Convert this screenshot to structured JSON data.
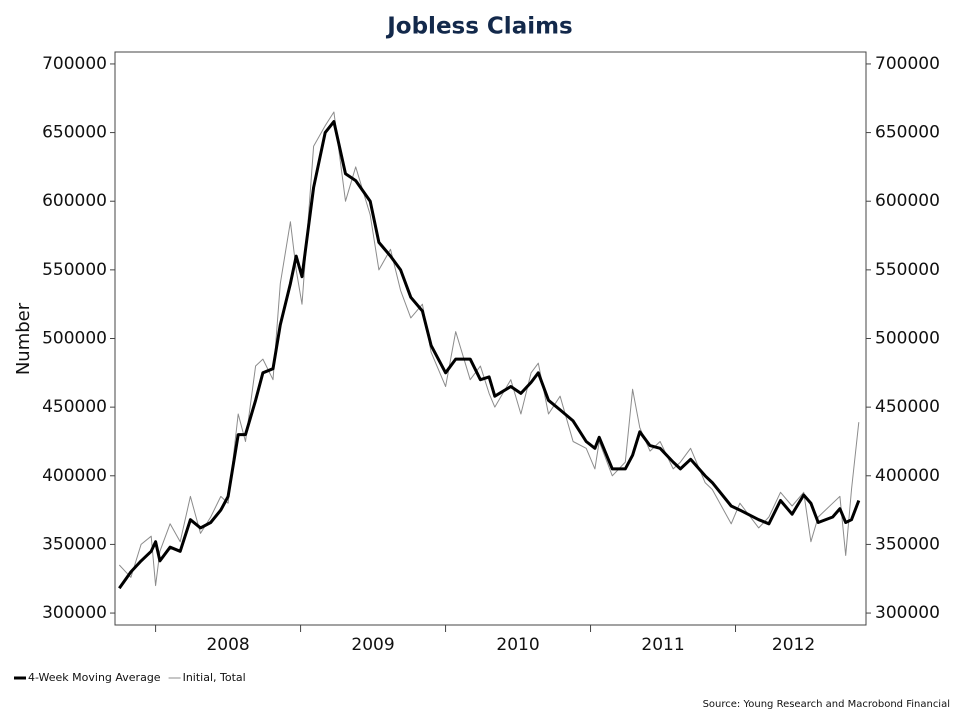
{
  "chart_data": {
    "type": "line",
    "title": "Jobless Claims",
    "ylabel": "Number",
    "source": "Source: Young Research and Macrobond Financial",
    "x": [
      2007.75,
      2007.83,
      2007.9,
      2007.97,
      2008.0,
      2008.03,
      2008.1,
      2008.17,
      2008.24,
      2008.31,
      2008.38,
      2008.45,
      2008.5,
      2008.57,
      2008.62,
      2008.69,
      2008.74,
      2008.81,
      2008.86,
      2008.93,
      2008.97,
      2009.01,
      2009.09,
      2009.17,
      2009.23,
      2009.31,
      2009.38,
      2009.48,
      2009.54,
      2009.62,
      2009.69,
      2009.76,
      2009.84,
      2009.9,
      2010.0,
      2010.07,
      2010.17,
      2010.24,
      2010.3,
      2010.34,
      2010.45,
      2010.52,
      2010.59,
      2010.64,
      2010.71,
      2010.79,
      2010.88,
      2010.97,
      2011.03,
      2011.06,
      2011.15,
      2011.24,
      2011.29,
      2011.34,
      2011.41,
      2011.48,
      2011.57,
      2011.62,
      2011.69,
      2011.79,
      2011.84,
      2011.97,
      2012.03,
      2012.16,
      2012.23,
      2012.31,
      2012.39,
      2012.47,
      2012.52,
      2012.57,
      2012.67,
      2012.72,
      2012.76,
      2012.8,
      2012.85
    ],
    "series": [
      {
        "name": "Initial, Total",
        "color": "#8c8c8c",
        "width": 1,
        "values": [
          335000,
          326000,
          350000,
          356000,
          320000,
          345000,
          365000,
          352000,
          385000,
          358000,
          370000,
          385000,
          380000,
          445000,
          425000,
          480000,
          485000,
          470000,
          540000,
          585000,
          550000,
          525000,
          640000,
          655000,
          665000,
          600000,
          625000,
          590000,
          550000,
          565000,
          535000,
          515000,
          525000,
          490000,
          465000,
          505000,
          470000,
          480000,
          460000,
          450000,
          470000,
          445000,
          475000,
          482000,
          445000,
          458000,
          425000,
          420000,
          405000,
          425000,
          400000,
          410000,
          463000,
          435000,
          418000,
          425000,
          405000,
          410000,
          420000,
          395000,
          390000,
          365000,
          380000,
          362000,
          370000,
          388000,
          378000,
          388000,
          352000,
          370000,
          380000,
          385000,
          342000,
          390000,
          439000
        ]
      },
      {
        "name": "4-Week Moving Average",
        "color": "#000000",
        "width": 3,
        "values": [
          318000,
          330000,
          338000,
          345000,
          352000,
          338000,
          348000,
          345000,
          368000,
          362000,
          366000,
          375000,
          385000,
          430000,
          430000,
          455000,
          475000,
          478000,
          510000,
          540000,
          560000,
          545000,
          610000,
          650000,
          658000,
          620000,
          615000,
          600000,
          570000,
          560000,
          550000,
          530000,
          520000,
          495000,
          475000,
          485000,
          485000,
          470000,
          472000,
          458000,
          465000,
          460000,
          468000,
          475000,
          455000,
          448000,
          440000,
          425000,
          420000,
          428000,
          405000,
          405000,
          415000,
          432000,
          422000,
          420000,
          410000,
          405000,
          412000,
          400000,
          395000,
          378000,
          375000,
          368000,
          365000,
          382000,
          372000,
          386000,
          380000,
          366000,
          370000,
          376000,
          366000,
          368000,
          382000
        ]
      }
    ],
    "legend_order": [
      1,
      0
    ],
    "xlim": [
      2007.72,
      2012.9
    ],
    "xticks": [
      2008,
      2009,
      2010,
      2011,
      2012
    ],
    "xlabels": [
      {
        "value": 2008.5,
        "label": "2008"
      },
      {
        "value": 2009.5,
        "label": "2009"
      },
      {
        "value": 2010.5,
        "label": "2010"
      },
      {
        "value": 2011.5,
        "label": "2011"
      },
      {
        "value": 2012.4,
        "label": "2012"
      }
    ],
    "ylim": [
      291300,
      708700
    ],
    "yticks": [
      300000,
      350000,
      400000,
      450000,
      500000,
      550000,
      600000,
      650000,
      700000
    ],
    "y2lim": [
      291300,
      708700
    ],
    "y2ticks": [
      300000,
      350000,
      400000,
      450000,
      500000,
      550000,
      600000,
      650000,
      700000
    ],
    "legend": "bottom-left"
  }
}
